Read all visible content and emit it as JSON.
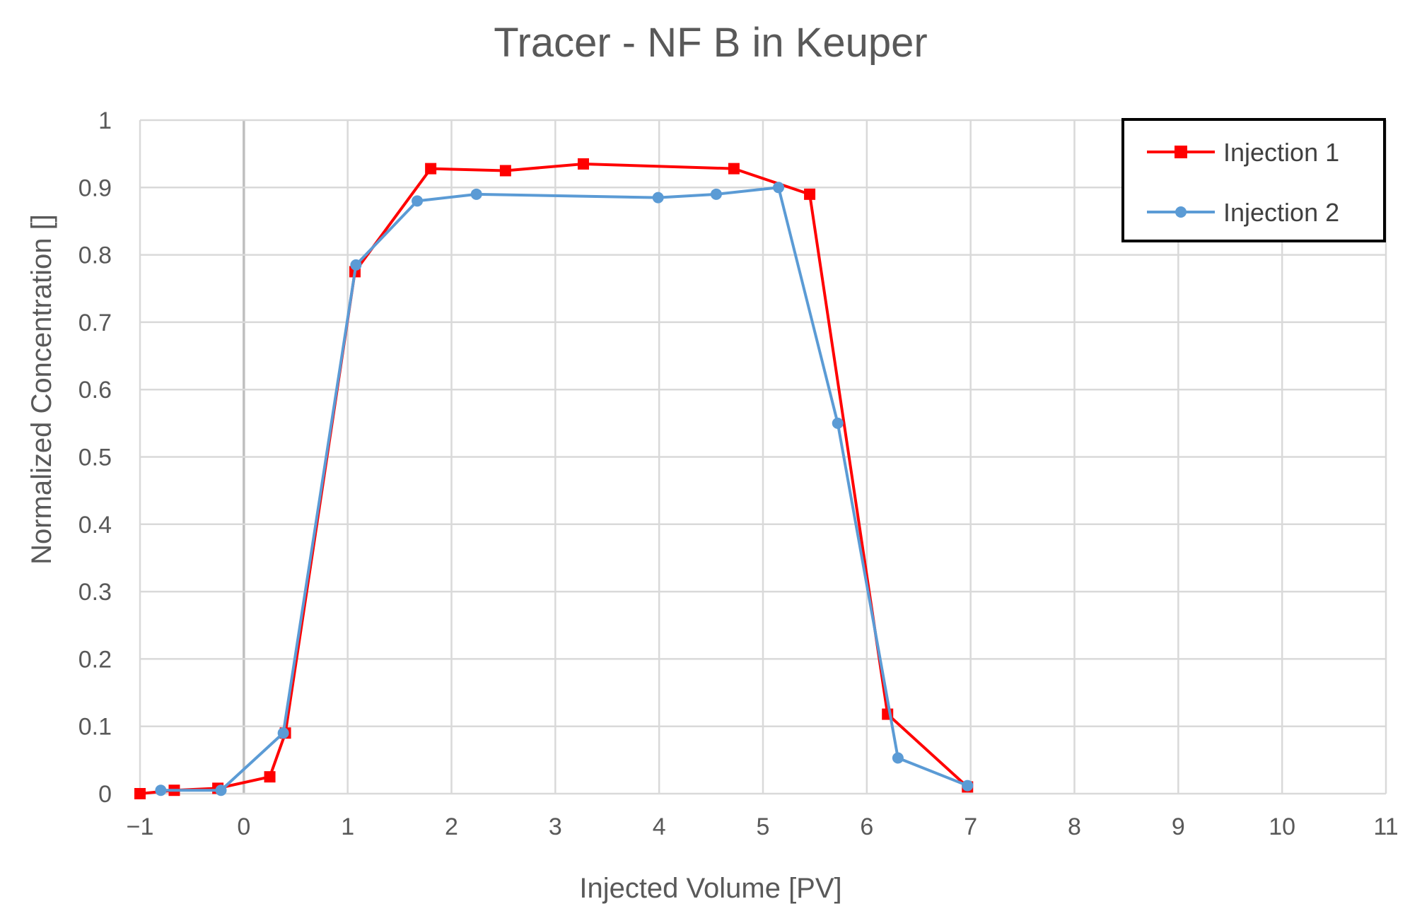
{
  "chart_data": {
    "type": "line",
    "title": "Tracer - NF B in Keuper",
    "xlabel": "Injected Volume [PV]",
    "ylabel": "Normalized Concentration []",
    "xlim": [
      -1,
      11
    ],
    "ylim": [
      0,
      1
    ],
    "x_ticks": [
      -1,
      0,
      1,
      2,
      3,
      4,
      5,
      6,
      7,
      8,
      9,
      10,
      11
    ],
    "x_tick_labels": [
      "−1",
      "0",
      "1",
      "2",
      "3",
      "4",
      "5",
      "6",
      "7",
      "8",
      "9",
      "10",
      "11"
    ],
    "y_ticks": [
      0,
      0.1,
      0.2,
      0.3,
      0.4,
      0.5,
      0.6,
      0.7,
      0.8,
      0.9,
      1
    ],
    "y_tick_labels": [
      "0",
      "0.1",
      "0.2",
      "0.3",
      "0.4",
      "0.5",
      "0.6",
      "0.7",
      "0.8",
      "0.9",
      "1"
    ],
    "grid": true,
    "legend_position": "top-right",
    "series": [
      {
        "name": "Injection 1",
        "color": "#ff0000",
        "marker": "square",
        "points": [
          [
            -1.0,
            0.0
          ],
          [
            -0.67,
            0.005
          ],
          [
            -0.25,
            0.008
          ],
          [
            0.25,
            0.025
          ],
          [
            0.4,
            0.09
          ],
          [
            1.07,
            0.775
          ],
          [
            1.8,
            0.928
          ],
          [
            2.52,
            0.925
          ],
          [
            3.27,
            0.935
          ],
          [
            4.72,
            0.928
          ],
          [
            5.45,
            0.89
          ],
          [
            6.2,
            0.118
          ],
          [
            6.97,
            0.01
          ]
        ]
      },
      {
        "name": "Injection 2",
        "color": "#5b9bd5",
        "marker": "circle",
        "points": [
          [
            -0.8,
            0.005
          ],
          [
            -0.22,
            0.005
          ],
          [
            0.38,
            0.09
          ],
          [
            1.08,
            0.785
          ],
          [
            1.67,
            0.88
          ],
          [
            2.24,
            0.89
          ],
          [
            3.99,
            0.885
          ],
          [
            4.55,
            0.89
          ],
          [
            5.15,
            0.9
          ],
          [
            5.72,
            0.55
          ],
          [
            6.3,
            0.053
          ],
          [
            6.97,
            0.012
          ]
        ]
      }
    ]
  }
}
